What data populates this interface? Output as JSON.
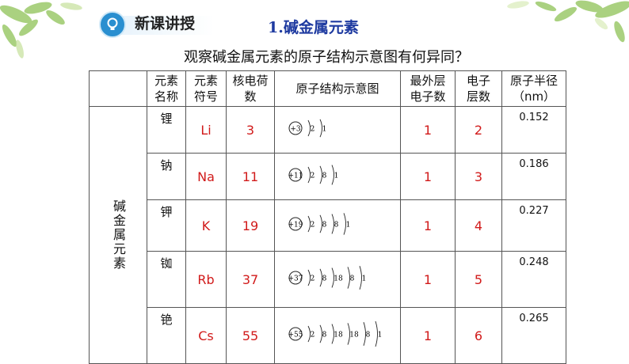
{
  "header": {
    "title": "新课讲授",
    "section": "1.碱金属元素"
  },
  "question": "观察碱金属元素的原子结构示意图有何异同？",
  "table": {
    "headers": [
      "元素\n名称",
      "元素\n符号",
      "核电荷\n数",
      "原子结构示意图",
      "最外层\n电子数",
      "电子\n层数",
      "原子半径\n（nm）"
    ],
    "category_label": "碱金属元素",
    "rows": [
      {
        "name": "锂",
        "symbol": "Li",
        "charge": "3",
        "nucleus": "+3",
        "shells": "2 1",
        "outer": "1",
        "layers": "2",
        "radius": "0.152"
      },
      {
        "name": "钠",
        "symbol": "Na",
        "charge": "11",
        "nucleus": "+11",
        "shells": "2 8 1",
        "outer": "1",
        "layers": "3",
        "radius": "0.186"
      },
      {
        "name": "钾",
        "symbol": "K",
        "charge": "19",
        "nucleus": "+19",
        "shells": "2 8 8 1",
        "outer": "1",
        "layers": "4",
        "radius": "0.227"
      },
      {
        "name": "铷",
        "symbol": "Rb",
        "charge": "37",
        "nucleus": "+37",
        "shells": "2 8 18 8 1",
        "outer": "1",
        "layers": "5",
        "radius": "0.248"
      },
      {
        "name": "铯",
        "symbol": "Cs",
        "charge": "55",
        "nucleus": "+55",
        "shells": "2 8 18 18 8 1",
        "outer": "1",
        "layers": "6",
        "radius": "0.265"
      }
    ]
  },
  "colors": {
    "accent_blue": "#2a8fd0",
    "value_red": "#d11a1a",
    "title_blue": "#1e3aa0"
  }
}
